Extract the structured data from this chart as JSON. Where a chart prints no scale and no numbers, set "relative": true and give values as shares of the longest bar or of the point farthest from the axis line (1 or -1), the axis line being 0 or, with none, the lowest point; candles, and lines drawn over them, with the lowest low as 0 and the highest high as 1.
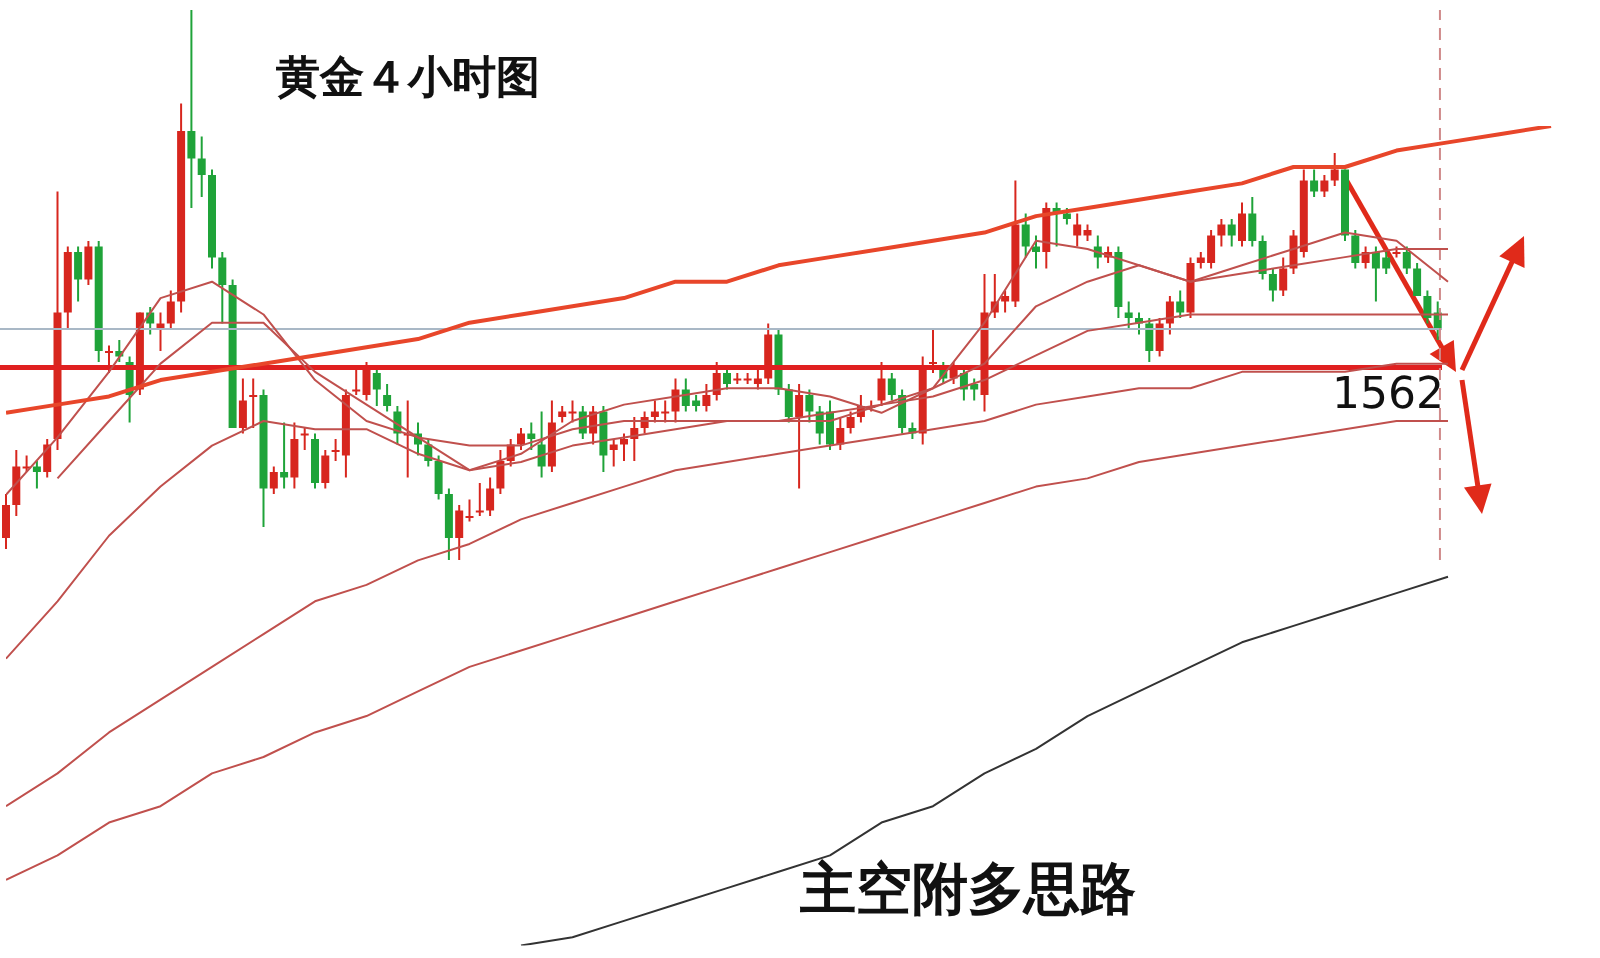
{
  "chart_data": [
    {
      "type": "candlestick",
      "title": "黄金４小时图",
      "annotations": [
        "主空附多思路",
        {
          "text": "1562",
          "y": 0.35
        }
      ],
      "relative": true,
      "categories": [
        null,
        null,
        null,
        null,
        null,
        null,
        null,
        null,
        null,
        null,
        null,
        null,
        null,
        null,
        null,
        null,
        null,
        null,
        null,
        null,
        null,
        null,
        null,
        null,
        null,
        null,
        null,
        null,
        null,
        null,
        null,
        null,
        null,
        null,
        null,
        null,
        null,
        null,
        null,
        null,
        null,
        null,
        null,
        null,
        null,
        null,
        null,
        null,
        null,
        null,
        null,
        null,
        null,
        null,
        null,
        null,
        null,
        null,
        null,
        null,
        null,
        null,
        null,
        null,
        null,
        null,
        null,
        null,
        null,
        null,
        null,
        null,
        null,
        null,
        null,
        null,
        null,
        null,
        null,
        null,
        null,
        null,
        null,
        null,
        null,
        null,
        null,
        null,
        null,
        null,
        null,
        null,
        null,
        null,
        null,
        null,
        null,
        null,
        null,
        null,
        null,
        null,
        null,
        null,
        null,
        null,
        null,
        null,
        null,
        null,
        null,
        null,
        null,
        null,
        null,
        null,
        null,
        null,
        null,
        null,
        null,
        null,
        null,
        null,
        null,
        null,
        null,
        null,
        null,
        null,
        null,
        null,
        null,
        null,
        null,
        null,
        null,
        null,
        null,
        null
      ],
      "ohlc": [
        [
          0.04,
          0.12,
          0.02,
          0.1
        ],
        [
          0.1,
          0.2,
          0.08,
          0.17
        ],
        [
          0.17,
          0.19,
          0.16,
          0.17
        ],
        [
          0.17,
          0.18,
          0.13,
          0.16
        ],
        [
          0.16,
          0.22,
          0.15,
          0.21
        ],
        [
          0.22,
          0.67,
          0.2,
          0.45
        ],
        [
          0.45,
          0.57,
          0.42,
          0.56
        ],
        [
          0.56,
          0.57,
          0.47,
          0.51
        ],
        [
          0.51,
          0.58,
          0.5,
          0.57
        ],
        [
          0.57,
          0.58,
          0.36,
          0.38
        ],
        [
          0.38,
          0.39,
          0.34,
          0.38
        ],
        [
          0.38,
          0.4,
          0.36,
          0.37
        ],
        [
          0.36,
          0.37,
          0.25,
          0.3
        ],
        [
          0.31,
          0.45,
          0.3,
          0.45
        ],
        [
          0.45,
          0.46,
          0.41,
          0.43
        ],
        [
          0.42,
          0.45,
          0.38,
          0.43
        ],
        [
          0.43,
          0.49,
          0.42,
          0.47
        ],
        [
          0.47,
          0.83,
          0.45,
          0.78
        ],
        [
          0.78,
          1.0,
          0.64,
          0.73
        ],
        [
          0.73,
          0.77,
          0.66,
          0.7
        ],
        [
          0.7,
          0.71,
          0.53,
          0.55
        ],
        [
          0.55,
          0.56,
          0.43,
          0.5
        ],
        [
          0.5,
          0.51,
          0.24,
          0.24
        ],
        [
          0.24,
          0.33,
          0.23,
          0.29
        ],
        [
          0.3,
          0.33,
          0.24,
          0.3
        ],
        [
          0.3,
          0.31,
          0.06,
          0.13
        ],
        [
          0.13,
          0.17,
          0.12,
          0.16
        ],
        [
          0.16,
          0.25,
          0.13,
          0.15
        ],
        [
          0.15,
          0.25,
          0.13,
          0.22
        ],
        [
          0.23,
          0.24,
          0.2,
          0.23
        ],
        [
          0.22,
          0.23,
          0.13,
          0.14
        ],
        [
          0.14,
          0.2,
          0.13,
          0.19
        ],
        [
          0.2,
          0.22,
          0.18,
          0.2
        ],
        [
          0.19,
          0.31,
          0.15,
          0.3
        ],
        [
          0.31,
          0.35,
          0.3,
          0.31
        ],
        [
          0.3,
          0.36,
          0.29,
          0.35
        ],
        [
          0.34,
          0.35,
          0.28,
          0.31
        ],
        [
          0.3,
          0.32,
          0.27,
          0.28
        ],
        [
          0.27,
          0.28,
          0.21,
          0.23
        ],
        [
          0.23,
          0.29,
          0.15,
          0.23
        ],
        [
          0.23,
          0.25,
          0.19,
          0.21
        ],
        [
          0.21,
          0.22,
          0.17,
          0.18
        ],
        [
          0.18,
          0.19,
          0.11,
          0.12
        ],
        [
          0.12,
          0.13,
          0.0,
          0.04
        ],
        [
          0.04,
          0.1,
          0.0,
          0.09
        ],
        [
          0.08,
          0.11,
          0.07,
          0.08
        ],
        [
          0.09,
          0.14,
          0.08,
          0.09
        ],
        [
          0.09,
          0.15,
          0.08,
          0.13
        ],
        [
          0.13,
          0.2,
          0.12,
          0.18
        ],
        [
          0.18,
          0.22,
          0.17,
          0.21
        ],
        [
          0.21,
          0.24,
          0.2,
          0.23
        ],
        [
          0.23,
          0.25,
          0.2,
          0.22
        ],
        [
          0.21,
          0.27,
          0.15,
          0.17
        ],
        [
          0.17,
          0.29,
          0.16,
          0.25
        ],
        [
          0.26,
          0.28,
          0.25,
          0.27
        ],
        [
          0.27,
          0.29,
          0.25,
          0.27
        ],
        [
          0.27,
          0.28,
          0.22,
          0.23
        ],
        [
          0.23,
          0.28,
          0.21,
          0.27
        ],
        [
          0.27,
          0.28,
          0.16,
          0.19
        ],
        [
          0.2,
          0.22,
          0.17,
          0.21
        ],
        [
          0.21,
          0.23,
          0.18,
          0.22
        ],
        [
          0.22,
          0.26,
          0.18,
          0.24
        ],
        [
          0.24,
          0.27,
          0.23,
          0.26
        ],
        [
          0.26,
          0.29,
          0.25,
          0.27
        ],
        [
          0.27,
          0.29,
          0.25,
          0.27
        ],
        [
          0.27,
          0.33,
          0.25,
          0.31
        ],
        [
          0.31,
          0.33,
          0.27,
          0.28
        ],
        [
          0.29,
          0.3,
          0.27,
          0.28
        ],
        [
          0.28,
          0.32,
          0.27,
          0.3
        ],
        [
          0.3,
          0.36,
          0.29,
          0.34
        ],
        [
          0.34,
          0.35,
          0.31,
          0.32
        ],
        [
          0.33,
          0.34,
          0.32,
          0.33
        ],
        [
          0.33,
          0.34,
          0.32,
          0.33
        ],
        [
          0.32,
          0.35,
          0.31,
          0.33
        ],
        [
          0.33,
          0.43,
          0.32,
          0.41
        ],
        [
          0.41,
          0.42,
          0.3,
          0.31
        ],
        [
          0.31,
          0.32,
          0.25,
          0.26
        ],
        [
          0.26,
          0.32,
          0.13,
          0.3
        ],
        [
          0.3,
          0.31,
          0.25,
          0.27
        ],
        [
          0.27,
          0.28,
          0.21,
          0.23
        ],
        [
          0.27,
          0.29,
          0.2,
          0.21
        ],
        [
          0.21,
          0.26,
          0.2,
          0.24
        ],
        [
          0.24,
          0.27,
          0.23,
          0.26
        ],
        [
          0.26,
          0.3,
          0.25,
          0.28
        ],
        [
          0.28,
          0.29,
          0.27,
          0.28
        ],
        [
          0.29,
          0.36,
          0.28,
          0.33
        ],
        [
          0.33,
          0.34,
          0.29,
          0.3
        ],
        [
          0.3,
          0.31,
          0.23,
          0.24
        ],
        [
          0.24,
          0.25,
          0.22,
          0.23
        ],
        [
          0.23,
          0.37,
          0.21,
          0.35
        ],
        [
          0.36,
          0.42,
          0.34,
          0.36
        ],
        [
          0.35,
          0.36,
          0.32,
          0.33
        ],
        [
          0.33,
          0.36,
          0.32,
          0.35
        ],
        [
          0.34,
          0.35,
          0.29,
          0.31
        ],
        [
          0.32,
          0.33,
          0.29,
          0.31
        ],
        [
          0.3,
          0.52,
          0.27,
          0.45
        ],
        [
          0.45,
          0.52,
          0.44,
          0.47
        ],
        [
          0.47,
          0.49,
          0.45,
          0.48
        ],
        [
          0.47,
          0.69,
          0.46,
          0.61
        ],
        [
          0.61,
          0.63,
          0.55,
          0.57
        ],
        [
          0.57,
          0.59,
          0.53,
          0.56
        ],
        [
          0.56,
          0.65,
          0.53,
          0.64
        ],
        [
          0.64,
          0.65,
          0.57,
          0.63
        ],
        [
          0.63,
          0.64,
          0.61,
          0.62
        ],
        [
          0.59,
          0.63,
          0.57,
          0.61
        ],
        [
          0.59,
          0.61,
          0.58,
          0.6
        ],
        [
          0.57,
          0.59,
          0.53,
          0.55
        ],
        [
          0.55,
          0.57,
          0.54,
          0.56
        ],
        [
          0.56,
          0.57,
          0.44,
          0.46
        ],
        [
          0.45,
          0.47,
          0.42,
          0.44
        ],
        [
          0.44,
          0.45,
          0.41,
          0.43
        ],
        [
          0.43,
          0.44,
          0.36,
          0.38
        ],
        [
          0.38,
          0.44,
          0.37,
          0.43
        ],
        [
          0.43,
          0.48,
          0.41,
          0.47
        ],
        [
          0.47,
          0.49,
          0.44,
          0.45
        ],
        [
          0.45,
          0.55,
          0.44,
          0.54
        ],
        [
          0.54,
          0.56,
          0.53,
          0.55
        ],
        [
          0.54,
          0.6,
          0.53,
          0.59
        ],
        [
          0.59,
          0.62,
          0.57,
          0.61
        ],
        [
          0.61,
          0.62,
          0.57,
          0.59
        ],
        [
          0.58,
          0.65,
          0.57,
          0.63
        ],
        [
          0.63,
          0.66,
          0.57,
          0.58
        ],
        [
          0.58,
          0.59,
          0.51,
          0.52
        ],
        [
          0.52,
          0.53,
          0.47,
          0.49
        ],
        [
          0.49,
          0.55,
          0.48,
          0.53
        ],
        [
          0.53,
          0.6,
          0.52,
          0.59
        ],
        [
          0.56,
          0.71,
          0.55,
          0.69
        ],
        [
          0.69,
          0.71,
          0.66,
          0.67
        ],
        [
          0.67,
          0.7,
          0.66,
          0.69
        ],
        [
          0.69,
          0.74,
          0.68,
          0.71
        ],
        [
          0.71,
          0.71,
          0.58,
          0.59
        ],
        [
          0.59,
          0.6,
          0.53,
          0.54
        ],
        [
          0.54,
          0.57,
          0.53,
          0.56
        ],
        [
          0.56,
          0.57,
          0.47,
          0.53
        ],
        [
          0.55,
          0.56,
          0.52,
          0.53
        ],
        [
          0.56,
          0.57,
          0.55,
          0.56
        ],
        [
          0.56,
          0.57,
          0.52,
          0.53
        ],
        [
          0.53,
          0.54,
          0.48,
          0.48
        ],
        [
          0.48,
          0.49,
          0.43,
          0.44
        ],
        [
          0.45,
          0.47,
          0.4,
          0.42
        ]
      ],
      "ref_lines": [
        {
          "axis": "y",
          "value": 0.42,
          "color": "#a9b8c6"
        },
        {
          "axis": "y",
          "value": 0.35,
          "color": "#e02020"
        }
      ]
    },
    {
      "type": "line",
      "relative": true,
      "marker": "none",
      "line_style": "solid",
      "categories": [
        null,
        null,
        null,
        null,
        null,
        null,
        null,
        null,
        null,
        null,
        null,
        null,
        null,
        null,
        null,
        null,
        null,
        null,
        null,
        null,
        null,
        null,
        null,
        null,
        null,
        null,
        null,
        null,
        null,
        null,
        null
      ],
      "series": [
        {
          "color": "#c0504d",
          "values": [
            0.55,
            0.62,
            0.7,
            0.79,
            0.81,
            0.77,
            0.69,
            0.64,
            0.62,
            0.58,
            0.6,
            0.64,
            0.66,
            0.67,
            0.68,
            0.68,
            0.67,
            0.65,
            0.68,
            0.76,
            0.86,
            0.85,
            0.83,
            0.81,
            0.83,
            0.85,
            0.87,
            0.86,
            0.81,
            null,
            null
          ]
        },
        {
          "color": "#c0504d",
          "values": [
            null,
            0.57,
            0.64,
            0.71,
            0.76,
            0.76,
            0.7,
            0.66,
            0.62,
            0.61,
            0.61,
            0.63,
            0.64,
            0.64,
            0.64,
            0.64,
            0.64,
            0.66,
            0.68,
            0.71,
            0.78,
            0.81,
            0.83,
            0.81,
            0.82,
            0.83,
            0.84,
            0.85,
            0.85,
            null,
            null
          ]
        },
        {
          "color": "#c0504d",
          "values": [
            0.35,
            0.42,
            0.5,
            0.56,
            0.61,
            0.64,
            0.63,
            0.63,
            0.6,
            0.58,
            0.59,
            0.61,
            0.62,
            0.63,
            0.64,
            0.64,
            0.65,
            0.66,
            0.67,
            0.69,
            0.72,
            0.75,
            0.76,
            0.77,
            0.77,
            0.77,
            0.77,
            0.77,
            0.77,
            null,
            null
          ]
        },
        {
          "color": "#c0504d",
          "values": [
            0.17,
            0.21,
            0.26,
            0.3,
            0.34,
            0.38,
            0.42,
            0.44,
            0.47,
            0.49,
            0.52,
            0.54,
            0.56,
            0.58,
            0.59,
            0.6,
            0.61,
            0.62,
            0.63,
            0.64,
            0.66,
            0.67,
            0.68,
            0.68,
            0.7,
            0.7,
            0.7,
            0.71,
            0.71,
            null,
            null
          ]
        },
        {
          "color": "#c0504d",
          "values": [
            0.08,
            0.11,
            0.15,
            0.17,
            0.21,
            0.23,
            0.26,
            0.28,
            0.31,
            0.34,
            0.36,
            0.38,
            0.4,
            0.42,
            0.44,
            0.46,
            0.48,
            0.5,
            0.52,
            0.54,
            0.56,
            0.57,
            0.59,
            0.6,
            0.61,
            0.62,
            0.63,
            0.64,
            0.64,
            null,
            null
          ]
        },
        {
          "color": "#333333",
          "values": [
            null,
            null,
            null,
            null,
            null,
            null,
            null,
            null,
            null,
            null,
            0,
            0.01,
            0.03,
            0.05,
            0.07,
            0.09,
            0.11,
            0.15,
            0.17,
            0.21,
            0.24,
            0.28,
            0.31,
            0.34,
            0.37,
            0.39,
            0.41,
            0.43,
            0.45,
            null,
            null
          ]
        },
        {
          "color": "#e8462a",
          "values": [
            0.65,
            0.66,
            0.67,
            0.69,
            0.7,
            0.71,
            0.72,
            0.73,
            0.74,
            0.76,
            0.77,
            0.78,
            0.79,
            0.81,
            0.81,
            0.83,
            0.84,
            0.85,
            0.86,
            0.87,
            0.89,
            0.9,
            0.91,
            0.92,
            0.93,
            0.95,
            0.95,
            0.97,
            0.98,
            0.99,
            1.0
          ]
        }
      ]
    }
  ]
}
